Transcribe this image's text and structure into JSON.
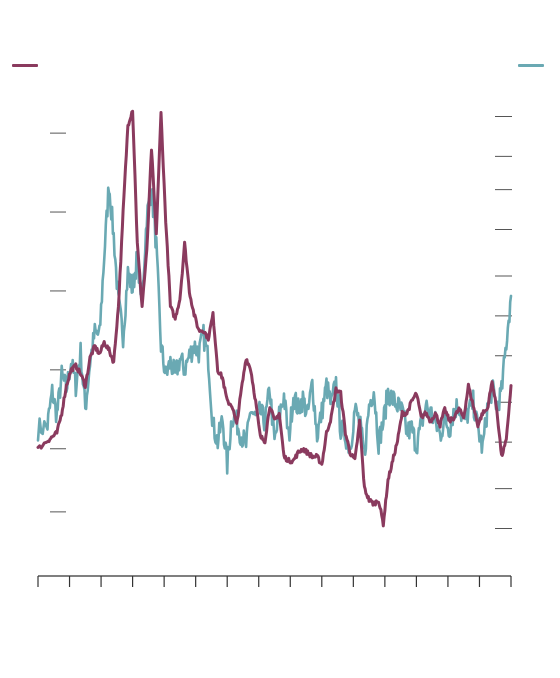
{
  "chart_data": {
    "type": "line",
    "title": "",
    "legend": {
      "placement": "top",
      "series_colors": [
        "#8a3a5e",
        "#6aa9b3"
      ]
    },
    "x_axis": {
      "tick_count": 16,
      "tick_labels": []
    },
    "y_axis_left": {
      "tick_levels": [
        0.8,
        1.6,
        2.6,
        3.6,
        4.6,
        5.6
      ],
      "tick_labels": []
    },
    "y_axis_right": {
      "tick_levels": [
        0.7,
        1.3,
        2.0,
        2.6,
        3.3,
        3.9,
        4.5,
        5.2,
        5.8,
        6.3,
        6.9
      ],
      "tick_labels": []
    },
    "grid": false,
    "series": [
      {
        "axis": "left",
        "color": "#8a3a5e",
        "x": [
          0,
          2,
          3,
          4,
          5,
          6,
          7,
          8,
          9,
          10,
          11,
          12,
          13,
          14,
          15,
          16,
          17,
          18,
          19,
          20,
          21,
          22,
          23,
          24,
          25,
          26,
          27,
          28,
          29,
          30,
          31,
          32,
          33,
          34,
          35,
          36,
          37,
          38,
          39,
          40,
          41,
          42,
          43,
          44,
          45,
          46,
          47,
          48,
          49,
          50,
          51,
          52,
          53,
          54,
          55,
          56,
          57,
          58,
          59,
          60,
          61,
          62,
          63,
          64,
          65,
          66,
          67,
          68,
          69,
          70,
          71,
          72,
          73,
          74,
          75,
          76,
          77,
          78,
          79,
          80,
          81,
          82,
          83,
          84,
          85,
          86,
          87,
          88,
          89,
          90,
          91,
          92,
          93,
          94,
          95,
          96,
          97,
          98,
          99,
          100
        ],
        "y": [
          1.6,
          1.7,
          1.75,
          1.8,
          2.05,
          2.4,
          2.6,
          2.65,
          2.55,
          2.4,
          2.75,
          2.9,
          2.8,
          2.95,
          2.85,
          2.7,
          3.4,
          4.6,
          5.7,
          5.9,
          4.2,
          3.4,
          4.1,
          5.4,
          4.3,
          5.85,
          4.5,
          3.4,
          3.25,
          3.5,
          4.2,
          3.6,
          3.3,
          3.1,
          3.1,
          3.0,
          3.3,
          2.6,
          2.5,
          2.2,
          2.15,
          1.9,
          2.35,
          2.75,
          2.6,
          2.2,
          1.75,
          1.7,
          2.15,
          1.95,
          2.05,
          1.5,
          1.45,
          1.45,
          1.55,
          1.6,
          1.55,
          1.5,
          1.5,
          1.4,
          1.8,
          2.0,
          2.35,
          2.3,
          1.8,
          1.55,
          1.45,
          1.95,
          1.1,
          0.95,
          0.9,
          0.95,
          0.65,
          1.2,
          1.45,
          1.7,
          2.05,
          2.05,
          2.2,
          2.3,
          2.0,
          2.05,
          1.95,
          2.05,
          1.9,
          2.1,
          1.95,
          2.0,
          2.1,
          2.0,
          2.4,
          2.15,
          1.9,
          2.05,
          2.1,
          2.45,
          2.1,
          1.5,
          1.7,
          2.4
        ]
      },
      {
        "axis": "right",
        "color": "#6aa9b3",
        "x": [
          0,
          2,
          3,
          4,
          5,
          6,
          7,
          8,
          9,
          10,
          11,
          12,
          13,
          14,
          15,
          16,
          17,
          18,
          19,
          20,
          21,
          22,
          23,
          24,
          25,
          26,
          27,
          28,
          29,
          30,
          31,
          32,
          33,
          34,
          35,
          36,
          37,
          38,
          39,
          40,
          41,
          42,
          43,
          44,
          45,
          46,
          47,
          48,
          49,
          50,
          51,
          52,
          53,
          54,
          55,
          56,
          57,
          58,
          59,
          60,
          61,
          62,
          63,
          64,
          65,
          66,
          67,
          68,
          69,
          70,
          71,
          72,
          73,
          74,
          75,
          76,
          77,
          78,
          79,
          80,
          81,
          82,
          83,
          84,
          85,
          86,
          87,
          88,
          89,
          90,
          91,
          92,
          93,
          94,
          95,
          96,
          97,
          98,
          99,
          100
        ],
        "y": [
          2.2,
          2.25,
          2.75,
          2.4,
          3.0,
          2.8,
          3.2,
          2.85,
          3.35,
          2.5,
          3.2,
          3.65,
          3.6,
          4.8,
          5.9,
          5.1,
          4.1,
          3.6,
          4.55,
          4.3,
          4.8,
          4.1,
          5.4,
          5.8,
          4.95,
          3.45,
          3.0,
          3.2,
          3.0,
          3.25,
          3.1,
          3.3,
          3.45,
          3.35,
          3.6,
          3.25,
          2.25,
          2.0,
          2.35,
          1.65,
          2.4,
          2.3,
          2.1,
          1.95,
          2.5,
          2.35,
          2.45,
          2.3,
          2.8,
          2.0,
          2.4,
          2.7,
          2.05,
          2.7,
          2.5,
          2.65,
          2.4,
          2.9,
          2.1,
          2.45,
          2.85,
          2.55,
          2.9,
          2.2,
          2.1,
          1.9,
          2.5,
          2.3,
          1.8,
          2.55,
          2.8,
          2.0,
          2.3,
          2.75,
          2.65,
          2.55,
          2.45,
          2.15,
          2.2,
          1.95,
          2.25,
          2.55,
          2.45,
          2.3,
          2.1,
          2.35,
          2.2,
          2.5,
          2.55,
          2.3,
          2.45,
          2.6,
          2.2,
          1.9,
          2.5,
          2.8,
          2.55,
          2.75,
          3.5,
          4.2
        ]
      }
    ]
  }
}
